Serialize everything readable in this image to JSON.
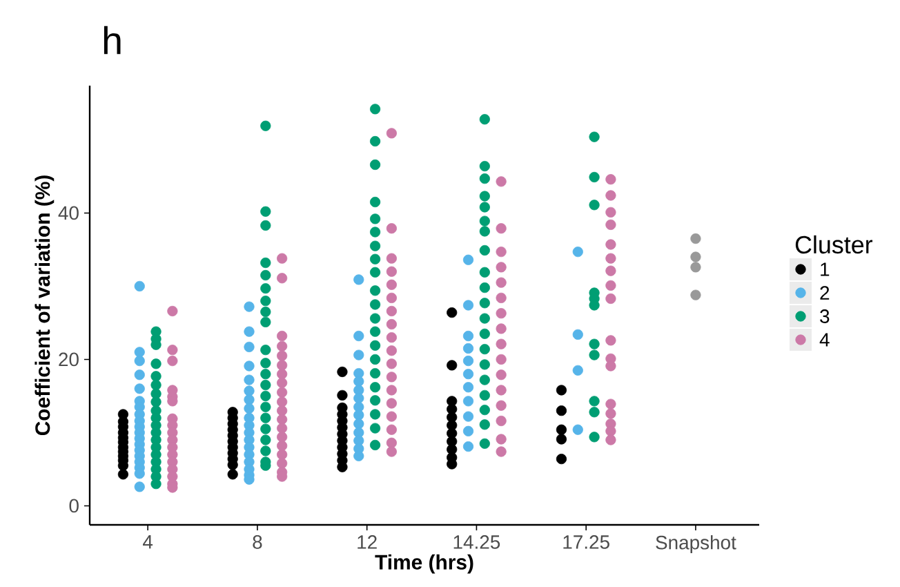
{
  "chart_data": {
    "type": "scatter",
    "title": "h",
    "xlabel": "Time (hrs)",
    "ylabel": "Coefficient of variation (%)",
    "legend_title": "Cluster",
    "legend": "right",
    "marker": "circle",
    "grid": false,
    "categories": [
      "4",
      "8",
      "12",
      "14.25",
      "17.25",
      "Snapshot"
    ],
    "ylim": [
      -2.6,
      57.4
    ],
    "yticks": [
      0,
      20,
      40
    ],
    "series": [
      {
        "name": "1",
        "color": "#000000",
        "x": [
          "4",
          "4",
          "4",
          "4",
          "4",
          "4",
          "4",
          "4",
          "4",
          "4",
          "4",
          "4",
          "8",
          "8",
          "8",
          "8",
          "8",
          "8",
          "8",
          "8",
          "8",
          "8",
          "8",
          "12",
          "12",
          "12",
          "12",
          "12",
          "12",
          "12",
          "12",
          "12",
          "12",
          "12",
          "12",
          "14.25",
          "14.25",
          "14.25",
          "14.25",
          "14.25",
          "14.25",
          "14.25",
          "14.25",
          "14.25",
          "14.25",
          "14.25",
          "17.25",
          "17.25",
          "17.25",
          "17.25",
          "17.25"
        ],
        "values": [
          12.5,
          11.5,
          10.8,
          10,
          9.3,
          8.7,
          8,
          7.4,
          6.8,
          6.2,
          5.5,
          4.3,
          12.8,
          12,
          11.2,
          10.4,
          9.6,
          8.8,
          8,
          7.2,
          6.4,
          5.6,
          4.3,
          18.3,
          15.1,
          13.4,
          12.5,
          11.6,
          10.7,
          9.8,
          8.9,
          8,
          7.1,
          6.2,
          5.3,
          26.4,
          19.2,
          14.3,
          13.2,
          12.1,
          11,
          9.9,
          8.8,
          7.7,
          6.6,
          5.7,
          15.8,
          13,
          10.4,
          9.1,
          6.4
        ]
      },
      {
        "name": "2",
        "color": "#56b4e9",
        "x": [
          "4",
          "4",
          "4",
          "4",
          "4",
          "4",
          "4",
          "4",
          "4",
          "4",
          "4",
          "4",
          "4",
          "4",
          "4",
          "4",
          "4",
          "4",
          "4",
          "8",
          "8",
          "8",
          "8",
          "8",
          "8",
          "8",
          "8",
          "8",
          "8",
          "8",
          "8",
          "8",
          "8",
          "8",
          "8",
          "8",
          "8",
          "12",
          "12",
          "12",
          "12",
          "12",
          "12",
          "12",
          "12",
          "12",
          "12",
          "12",
          "12",
          "12",
          "12",
          "14.25",
          "14.25",
          "14.25",
          "14.25",
          "14.25",
          "14.25",
          "14.25",
          "14.25",
          "14.25",
          "14.25",
          "14.25",
          "17.25",
          "17.25",
          "17.25",
          "17.25"
        ],
        "values": [
          30,
          21,
          19.8,
          17.9,
          16,
          14.3,
          13.5,
          12.5,
          11.6,
          10.8,
          10,
          9.2,
          8.4,
          7.6,
          6.8,
          6,
          5.2,
          4.4,
          2.6,
          27.2,
          23.8,
          21.7,
          19.1,
          17.2,
          15.7,
          14.5,
          13.3,
          12,
          11,
          10,
          9,
          8,
          7,
          6,
          5,
          4.2,
          3.6,
          30.9,
          23.2,
          20.6,
          18.1,
          17,
          15.8,
          14.7,
          13.5,
          12.4,
          11.2,
          10,
          8.9,
          7.8,
          6.8,
          33.6,
          27.4,
          23.2,
          21.5,
          19.8,
          18,
          16.2,
          14.3,
          12.2,
          10.2,
          8.1,
          34.7,
          23.4,
          18.5,
          10.4
        ]
      },
      {
        "name": "3",
        "color": "#009e73",
        "x": [
          "4",
          "4",
          "4",
          "4",
          "4",
          "4",
          "4",
          "4",
          "4",
          "4",
          "4",
          "4",
          "4",
          "4",
          "4",
          "4",
          "4",
          "4",
          "4",
          "8",
          "8",
          "8",
          "8",
          "8",
          "8",
          "8",
          "8",
          "8",
          "8",
          "8",
          "8",
          "8",
          "8",
          "8",
          "8",
          "8",
          "8",
          "8",
          "8",
          "8",
          "12",
          "12",
          "12",
          "12",
          "12",
          "12",
          "12",
          "12",
          "12",
          "12",
          "12",
          "12",
          "12",
          "12",
          "12",
          "12",
          "12",
          "12",
          "12",
          "12",
          "12",
          "14.25",
          "14.25",
          "14.25",
          "14.25",
          "14.25",
          "14.25",
          "14.25",
          "14.25",
          "14.25",
          "14.25",
          "14.25",
          "14.25",
          "14.25",
          "14.25",
          "14.25",
          "14.25",
          "14.25",
          "14.25",
          "14.25",
          "14.25",
          "17.25",
          "17.25",
          "17.25",
          "17.25",
          "17.25",
          "17.25",
          "17.25",
          "17.25",
          "17.25",
          "17.25",
          "17.25"
        ],
        "values": [
          23.8,
          22.8,
          22,
          19.4,
          17.7,
          16.5,
          15.3,
          14.2,
          13,
          12,
          11,
          10,
          9,
          8,
          7,
          6,
          5,
          4,
          3,
          51.9,
          40.2,
          38.3,
          33.2,
          31.5,
          29.7,
          28,
          26.5,
          25.1,
          21.3,
          19.5,
          18,
          16.5,
          15,
          13.5,
          12,
          10.5,
          9,
          7.5,
          6,
          5.5,
          54.2,
          49.8,
          46.6,
          41.5,
          39.2,
          37.4,
          35.5,
          33.7,
          31.9,
          29.4,
          27.5,
          25.6,
          23.8,
          21.9,
          20,
          18.1,
          16.2,
          14.4,
          12.5,
          10.6,
          8.3,
          52.8,
          46.4,
          44.7,
          42.3,
          40.8,
          38.9,
          37.5,
          34.9,
          31.9,
          29.8,
          27.7,
          25.6,
          23.5,
          21.4,
          19.3,
          17.2,
          15.1,
          13.1,
          11.1,
          8.5,
          50.4,
          44.9,
          41.1,
          29.1,
          28.3,
          27.4,
          22.1,
          20.6,
          14.3,
          12.8,
          9.4
        ]
      },
      {
        "name": "4",
        "color": "#cc79a7",
        "x": [
          "4",
          "4",
          "4",
          "4",
          "4",
          "4",
          "4",
          "4",
          "4",
          "4",
          "4",
          "4",
          "4",
          "4",
          "4",
          "4",
          "4",
          "8",
          "8",
          "8",
          "8",
          "8",
          "8",
          "8",
          "8",
          "8",
          "8",
          "8",
          "8",
          "8",
          "8",
          "8",
          "8",
          "8",
          "8",
          "8",
          "12",
          "12",
          "12",
          "12",
          "12",
          "12",
          "12",
          "12",
          "12",
          "12",
          "12",
          "12",
          "12",
          "12",
          "12",
          "12",
          "12",
          "12",
          "14.25",
          "14.25",
          "14.25",
          "14.25",
          "14.25",
          "14.25",
          "14.25",
          "14.25",
          "14.25",
          "14.25",
          "14.25",
          "14.25",
          "14.25",
          "14.25",
          "14.25",
          "14.25",
          "17.25",
          "17.25",
          "17.25",
          "17.25",
          "17.25",
          "17.25",
          "17.25",
          "17.25",
          "17.25",
          "17.25",
          "17.25",
          "17.25",
          "17.25",
          "17.25",
          "17.25",
          "17.25",
          "17.25"
        ],
        "values": [
          26.6,
          21.3,
          19.8,
          15.8,
          14.9,
          14.3,
          11.9,
          11,
          10,
          9,
          8,
          7,
          6,
          5,
          4,
          3,
          2.5,
          33.8,
          31.1,
          23.2,
          21.8,
          20.5,
          19.2,
          18,
          16.8,
          15.5,
          14.2,
          13,
          11.8,
          10.6,
          9.4,
          8.2,
          7,
          5.8,
          4.6,
          4,
          50.9,
          37.9,
          33.8,
          32,
          30.2,
          28.4,
          26.6,
          24.8,
          23,
          21.2,
          19.4,
          17.6,
          15.8,
          14,
          12.2,
          10.4,
          8.6,
          7.4,
          44.3,
          37.9,
          34.7,
          32.6,
          30.5,
          28.4,
          26.3,
          24.2,
          22.1,
          20,
          17.9,
          15.8,
          13.7,
          11.6,
          9.1,
          7.4,
          44.6,
          42.4,
          40.1,
          38.4,
          35.7,
          33.8,
          32.1,
          30.1,
          28.3,
          22.6,
          20.1,
          19.1,
          13.9,
          12.6,
          11.2,
          10.2,
          9
        ]
      },
      {
        "color": "#999999",
        "x": [
          "Snapshot",
          "Snapshot",
          "Snapshot",
          "Snapshot"
        ],
        "values": [
          36.5,
          34,
          32.6,
          28.8
        ]
      }
    ]
  }
}
